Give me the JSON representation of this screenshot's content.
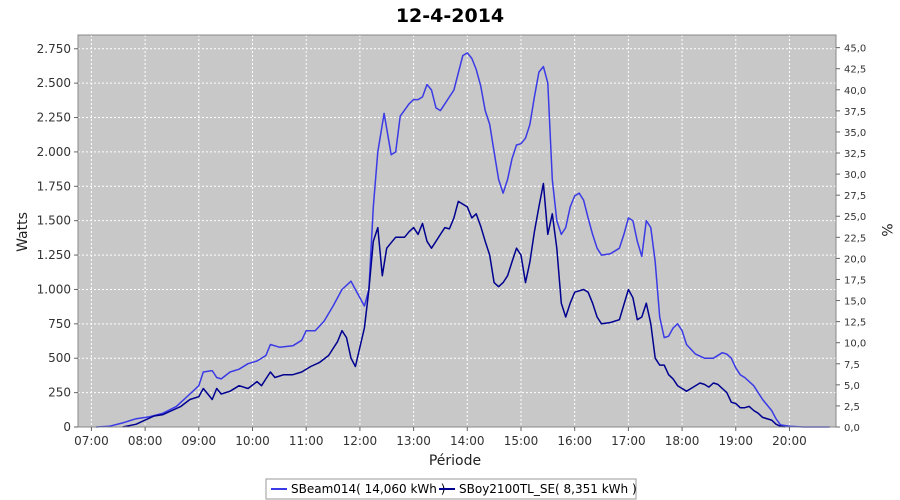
{
  "chart_data": {
    "type": "line",
    "title": "12-4-2014",
    "xlabel": "Période",
    "ylabel": "Watts",
    "y2label": "%",
    "x_ticks": [
      "07:00",
      "08:00",
      "09:00",
      "10:00",
      "11:00",
      "12:00",
      "13:00",
      "14:00",
      "15:00",
      "16:00",
      "17:00",
      "18:00",
      "19:00",
      "20:00"
    ],
    "xlim": [
      "06:45",
      "20:52"
    ],
    "ylim": [
      0,
      2850
    ],
    "y_ticks": [
      0,
      250,
      500,
      750,
      1000,
      1250,
      1500,
      1750,
      2000,
      2250,
      2500,
      2750
    ],
    "y_tick_labels": [
      "0",
      "250",
      "500",
      "750",
      "1.000",
      "1.250",
      "1.500",
      "1.750",
      "2.000",
      "2.250",
      "2.500",
      "2.750"
    ],
    "y2lim": [
      0,
      46.5
    ],
    "y2_ticks": [
      0,
      2.5,
      5,
      7.5,
      10,
      12.5,
      15,
      17.5,
      20,
      22.5,
      25,
      27.5,
      30,
      32.5,
      35,
      37.5,
      40,
      42.5,
      45
    ],
    "y2_tick_labels": [
      "0,0",
      "2,5",
      "5,0",
      "7,5",
      "10,0",
      "12,5",
      "15,0",
      "17,5",
      "20,0",
      "22,5",
      "25,0",
      "27,5",
      "30,0",
      "32,5",
      "35,0",
      "37,5",
      "40,0",
      "42,5",
      "45,0"
    ],
    "grid": true,
    "legend_position": "bottom",
    "plot_background": "#c8c8c8",
    "series": [
      {
        "name": "SBeam014( 14,060 kWh )",
        "color": "#3a3ae6",
        "points": [
          [
            "07:05",
            0
          ],
          [
            "07:20",
            5
          ],
          [
            "07:35",
            30
          ],
          [
            "07:50",
            60
          ],
          [
            "08:05",
            75
          ],
          [
            "08:20",
            100
          ],
          [
            "08:35",
            150
          ],
          [
            "08:50",
            240
          ],
          [
            "09:00",
            300
          ],
          [
            "09:05",
            400
          ],
          [
            "09:15",
            410
          ],
          [
            "09:20",
            360
          ],
          [
            "09:25",
            350
          ],
          [
            "09:35",
            400
          ],
          [
            "09:45",
            420
          ],
          [
            "09:55",
            460
          ],
          [
            "10:05",
            480
          ],
          [
            "10:15",
            520
          ],
          [
            "10:20",
            600
          ],
          [
            "10:30",
            580
          ],
          [
            "10:45",
            590
          ],
          [
            "10:55",
            630
          ],
          [
            "11:00",
            700
          ],
          [
            "11:10",
            700
          ],
          [
            "11:20",
            770
          ],
          [
            "11:30",
            880
          ],
          [
            "11:40",
            1000
          ],
          [
            "11:50",
            1060
          ],
          [
            "11:55",
            1000
          ],
          [
            "12:05",
            880
          ],
          [
            "12:10",
            1000
          ],
          [
            "12:15",
            1600
          ],
          [
            "12:20",
            2000
          ],
          [
            "12:27",
            2280
          ],
          [
            "12:35",
            1980
          ],
          [
            "12:40",
            2000
          ],
          [
            "12:45",
            2260
          ],
          [
            "12:55",
            2350
          ],
          [
            "13:00",
            2380
          ],
          [
            "13:05",
            2380
          ],
          [
            "13:10",
            2400
          ],
          [
            "13:15",
            2490
          ],
          [
            "13:20",
            2450
          ],
          [
            "13:25",
            2320
          ],
          [
            "13:30",
            2300
          ],
          [
            "13:35",
            2350
          ],
          [
            "13:40",
            2400
          ],
          [
            "13:45",
            2450
          ],
          [
            "13:55",
            2700
          ],
          [
            "14:00",
            2720
          ],
          [
            "14:05",
            2680
          ],
          [
            "14:10",
            2600
          ],
          [
            "14:15",
            2480
          ],
          [
            "14:20",
            2300
          ],
          [
            "14:25",
            2200
          ],
          [
            "14:30",
            2000
          ],
          [
            "14:35",
            1800
          ],
          [
            "14:40",
            1700
          ],
          [
            "14:45",
            1800
          ],
          [
            "14:50",
            1950
          ],
          [
            "14:55",
            2050
          ],
          [
            "15:00",
            2060
          ],
          [
            "15:05",
            2100
          ],
          [
            "15:10",
            2200
          ],
          [
            "15:15",
            2400
          ],
          [
            "15:20",
            2580
          ],
          [
            "15:25",
            2620
          ],
          [
            "15:30",
            2500
          ],
          [
            "15:35",
            1800
          ],
          [
            "15:40",
            1500
          ],
          [
            "15:45",
            1400
          ],
          [
            "15:50",
            1450
          ],
          [
            "15:55",
            1600
          ],
          [
            "16:00",
            1680
          ],
          [
            "16:05",
            1700
          ],
          [
            "16:10",
            1650
          ],
          [
            "16:15",
            1520
          ],
          [
            "16:20",
            1400
          ],
          [
            "16:25",
            1300
          ],
          [
            "16:30",
            1250
          ],
          [
            "16:40",
            1260
          ],
          [
            "16:50",
            1300
          ],
          [
            "16:55",
            1400
          ],
          [
            "17:00",
            1520
          ],
          [
            "17:05",
            1500
          ],
          [
            "17:10",
            1350
          ],
          [
            "17:15",
            1240
          ],
          [
            "17:20",
            1500
          ],
          [
            "17:25",
            1450
          ],
          [
            "17:30",
            1200
          ],
          [
            "17:35",
            800
          ],
          [
            "17:40",
            650
          ],
          [
            "17:45",
            660
          ],
          [
            "17:50",
            720
          ],
          [
            "17:55",
            750
          ],
          [
            "18:00",
            700
          ],
          [
            "18:05",
            600
          ],
          [
            "18:15",
            530
          ],
          [
            "18:25",
            500
          ],
          [
            "18:35",
            500
          ],
          [
            "18:45",
            540
          ],
          [
            "18:50",
            530
          ],
          [
            "18:55",
            500
          ],
          [
            "19:00",
            430
          ],
          [
            "19:05",
            380
          ],
          [
            "19:10",
            360
          ],
          [
            "19:20",
            300
          ],
          [
            "19:30",
            200
          ],
          [
            "19:40",
            120
          ],
          [
            "19:45",
            60
          ],
          [
            "19:50",
            15
          ],
          [
            "20:00",
            5
          ],
          [
            "20:15",
            0
          ],
          [
            "20:45",
            0
          ]
        ]
      },
      {
        "name": "SBoy2100TL_SE( 8,351 kWh )",
        "color": "#000090",
        "points": [
          [
            "07:35",
            0
          ],
          [
            "07:50",
            20
          ],
          [
            "08:00",
            50
          ],
          [
            "08:10",
            80
          ],
          [
            "08:20",
            90
          ],
          [
            "08:30",
            120
          ],
          [
            "08:40",
            150
          ],
          [
            "08:50",
            200
          ],
          [
            "09:00",
            220
          ],
          [
            "09:05",
            280
          ],
          [
            "09:10",
            240
          ],
          [
            "09:15",
            200
          ],
          [
            "09:20",
            280
          ],
          [
            "09:25",
            240
          ],
          [
            "09:35",
            260
          ],
          [
            "09:45",
            300
          ],
          [
            "09:55",
            280
          ],
          [
            "10:05",
            330
          ],
          [
            "10:10",
            300
          ],
          [
            "10:15",
            350
          ],
          [
            "10:20",
            400
          ],
          [
            "10:25",
            360
          ],
          [
            "10:35",
            380
          ],
          [
            "10:45",
            380
          ],
          [
            "10:55",
            400
          ],
          [
            "11:05",
            440
          ],
          [
            "11:15",
            470
          ],
          [
            "11:25",
            520
          ],
          [
            "11:35",
            620
          ],
          [
            "11:40",
            700
          ],
          [
            "11:45",
            650
          ],
          [
            "11:50",
            500
          ],
          [
            "11:55",
            440
          ],
          [
            "12:05",
            720
          ],
          [
            "12:10",
            1000
          ],
          [
            "12:15",
            1350
          ],
          [
            "12:20",
            1450
          ],
          [
            "12:25",
            1100
          ],
          [
            "12:30",
            1300
          ],
          [
            "12:40",
            1380
          ],
          [
            "12:50",
            1380
          ],
          [
            "12:55",
            1420
          ],
          [
            "13:00",
            1450
          ],
          [
            "13:05",
            1400
          ],
          [
            "13:10",
            1480
          ],
          [
            "13:15",
            1350
          ],
          [
            "13:20",
            1300
          ],
          [
            "13:25",
            1350
          ],
          [
            "13:30",
            1400
          ],
          [
            "13:35",
            1450
          ],
          [
            "13:40",
            1440
          ],
          [
            "13:45",
            1520
          ],
          [
            "13:50",
            1640
          ],
          [
            "14:00",
            1600
          ],
          [
            "14:05",
            1520
          ],
          [
            "14:10",
            1550
          ],
          [
            "14:15",
            1460
          ],
          [
            "14:20",
            1350
          ],
          [
            "14:25",
            1250
          ],
          [
            "14:30",
            1050
          ],
          [
            "14:35",
            1020
          ],
          [
            "14:40",
            1050
          ],
          [
            "14:45",
            1100
          ],
          [
            "14:50",
            1200
          ],
          [
            "14:55",
            1300
          ],
          [
            "15:00",
            1250
          ],
          [
            "15:05",
            1050
          ],
          [
            "15:10",
            1200
          ],
          [
            "15:15",
            1420
          ],
          [
            "15:20",
            1600
          ],
          [
            "15:25",
            1770
          ],
          [
            "15:30",
            1400
          ],
          [
            "15:35",
            1550
          ],
          [
            "15:40",
            1300
          ],
          [
            "15:45",
            900
          ],
          [
            "15:50",
            800
          ],
          [
            "15:55",
            900
          ],
          [
            "16:00",
            980
          ],
          [
            "16:10",
            1000
          ],
          [
            "16:15",
            980
          ],
          [
            "16:20",
            900
          ],
          [
            "16:25",
            800
          ],
          [
            "16:30",
            750
          ],
          [
            "16:40",
            760
          ],
          [
            "16:50",
            780
          ],
          [
            "17:00",
            1000
          ],
          [
            "17:05",
            940
          ],
          [
            "17:10",
            780
          ],
          [
            "17:15",
            800
          ],
          [
            "17:20",
            900
          ],
          [
            "17:25",
            750
          ],
          [
            "17:30",
            500
          ],
          [
            "17:35",
            450
          ],
          [
            "17:40",
            450
          ],
          [
            "17:45",
            380
          ],
          [
            "17:50",
            350
          ],
          [
            "17:55",
            300
          ],
          [
            "18:00",
            280
          ],
          [
            "18:05",
            260
          ],
          [
            "18:10",
            280
          ],
          [
            "18:15",
            300
          ],
          [
            "18:20",
            320
          ],
          [
            "18:25",
            310
          ],
          [
            "18:30",
            290
          ],
          [
            "18:35",
            320
          ],
          [
            "18:40",
            310
          ],
          [
            "18:45",
            280
          ],
          [
            "18:50",
            250
          ],
          [
            "18:55",
            180
          ],
          [
            "19:00",
            170
          ],
          [
            "19:05",
            140
          ],
          [
            "19:10",
            140
          ],
          [
            "19:15",
            150
          ],
          [
            "19:20",
            120
          ],
          [
            "19:25",
            100
          ],
          [
            "19:30",
            70
          ],
          [
            "19:40",
            50
          ],
          [
            "19:45",
            20
          ],
          [
            "19:50",
            5
          ],
          [
            "19:55",
            0
          ]
        ]
      }
    ]
  }
}
